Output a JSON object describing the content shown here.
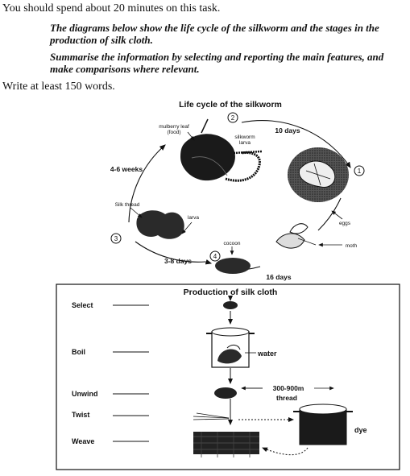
{
  "intro": "You should spend about 20 minutes on this task.",
  "task": {
    "line1": "The diagrams below show the life cycle of the silkworm and the stages in the production of silk cloth.",
    "line2": "Summarise the information by selecting and reporting the main features, and make comparisons where relevant."
  },
  "word_count": "Write at least 150 words.",
  "lifecycle": {
    "title": "Life cycle of the silkworm",
    "stage1": "1",
    "stage2": "2",
    "stage3": "3",
    "stage4": "4",
    "mulberry_leaf": "mulberry leaf",
    "food": "(food)",
    "silkworm": "silkworm",
    "larva_top": "larva",
    "ten_days": "10 days",
    "four_six_weeks": "4-6 weeks",
    "silk_thread": "Silk thread",
    "larva_mid": "larva",
    "eggs": "eggs",
    "moth": "moth",
    "cocoon": "cocoon",
    "three_eight_days": "3-8 days",
    "sixteen_days": "16 days"
  },
  "production": {
    "title": "Production of silk cloth",
    "steps": [
      "Select",
      "Boil",
      "Unwind",
      "Twist",
      "Weave"
    ],
    "water": "water",
    "length": "300-900m",
    "thread": "thread",
    "dye": "dye"
  }
}
